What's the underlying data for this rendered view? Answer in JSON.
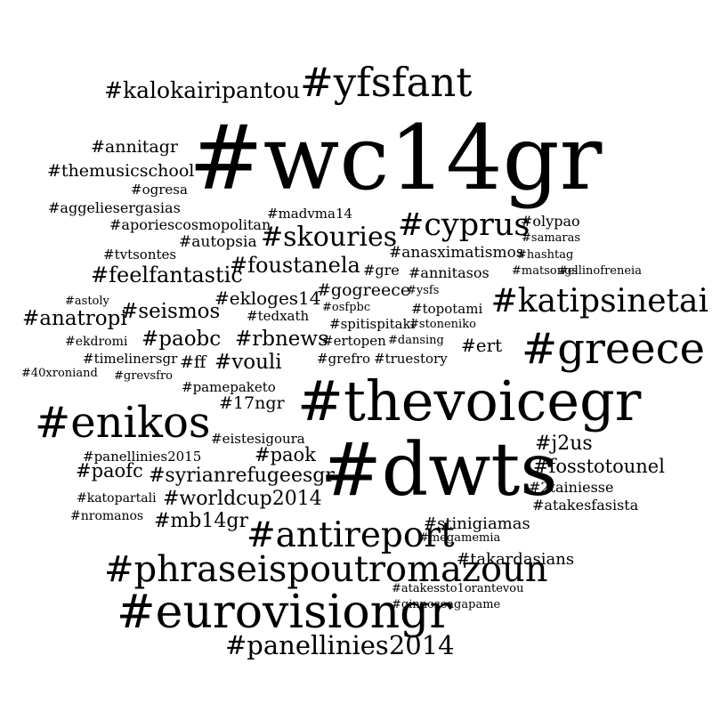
{
  "cloud": {
    "background": "#ffffff",
    "text_color": "#000000",
    "words": [
      {
        "text": "#wc14gr",
        "weight": 100
      },
      {
        "text": "#dwts",
        "weight": 82
      },
      {
        "text": "#thevoicegr",
        "weight": 62
      },
      {
        "text": "#eurovisiongr",
        "weight": 52
      },
      {
        "text": "#enikos",
        "weight": 48
      },
      {
        "text": "#greece",
        "weight": 48
      },
      {
        "text": "#yfsfant",
        "weight": 45
      },
      {
        "text": "#phraseispoutromazoun",
        "weight": 40
      },
      {
        "text": "#antireport",
        "weight": 39
      },
      {
        "text": "#katipsinetai",
        "weight": 36
      },
      {
        "text": "#cyprus",
        "weight": 35
      },
      {
        "text": "#skouries",
        "weight": 30
      },
      {
        "text": "#panellinies2014",
        "weight": 29
      },
      {
        "text": "#kalokairipantou",
        "weight": 25
      },
      {
        "text": "#feelfantastic",
        "weight": 24
      },
      {
        "text": "#foustanela",
        "weight": 24
      },
      {
        "text": "#anatropi",
        "weight": 23
      },
      {
        "text": "#seismos",
        "weight": 23
      },
      {
        "text": "#paobc",
        "weight": 23
      },
      {
        "text": "#rbnews",
        "weight": 23
      },
      {
        "text": "#vouli",
        "weight": 23
      },
      {
        "text": "#syrianrefugeesgr",
        "weight": 22
      },
      {
        "text": "#worldcup2014",
        "weight": 22
      },
      {
        "text": "#mb14gr",
        "weight": 22
      },
      {
        "text": "#paofc",
        "weight": 21
      },
      {
        "text": "#paok",
        "weight": 21
      },
      {
        "text": "#j2us",
        "weight": 22
      },
      {
        "text": "#fosstotounel",
        "weight": 21
      },
      {
        "text": "#ekloges14",
        "weight": 20
      },
      {
        "text": "#gogreece",
        "weight": 19
      },
      {
        "text": "#ert",
        "weight": 20
      },
      {
        "text": "#annitagr",
        "weight": 19
      },
      {
        "text": "#themusicschool",
        "weight": 19
      },
      {
        "text": "#17ngr",
        "weight": 19
      },
      {
        "text": "#ff",
        "weight": 19
      },
      {
        "text": "#stinigiamas",
        "weight": 18
      },
      {
        "text": "#takardasians",
        "weight": 18
      },
      {
        "text": "#autopsia",
        "weight": 17
      },
      {
        "text": "#anasximatismos",
        "weight": 17
      },
      {
        "text": "#annitasos",
        "weight": 16
      },
      {
        "text": "#gre",
        "weight": 16
      },
      {
        "text": "#olypao",
        "weight": 16
      },
      {
        "text": "#atakesfasista",
        "weight": 16
      },
      {
        "text": "#2tainiesse",
        "weight": 16
      },
      {
        "text": "#aggeliesergasias",
        "weight": 16
      },
      {
        "text": "#aporiescosmopolitan",
        "weight": 16
      },
      {
        "text": "#ogresa",
        "weight": 15
      },
      {
        "text": "#madvma14",
        "weight": 15
      },
      {
        "text": "#tvtsontes",
        "weight": 15
      },
      {
        "text": "#topotami",
        "weight": 15
      },
      {
        "text": "#spitispitaki",
        "weight": 15
      },
      {
        "text": "#tedxath",
        "weight": 15
      },
      {
        "text": "#timelinersgr",
        "weight": 15
      },
      {
        "text": "#ertopen",
        "weight": 15
      },
      {
        "text": "#grefro",
        "weight": 15
      },
      {
        "text": "#truestory",
        "weight": 15
      },
      {
        "text": "#eistesigoura",
        "weight": 15
      },
      {
        "text": "#panellinies2015",
        "weight": 15
      },
      {
        "text": "#pamepaketo",
        "weight": 15
      },
      {
        "text": "#ekdromi",
        "weight": 14
      },
      {
        "text": "#katopartali",
        "weight": 14
      },
      {
        "text": "#nromanos",
        "weight": 14
      },
      {
        "text": "#samaras",
        "weight": 13
      },
      {
        "text": "#hashtag",
        "weight": 13
      },
      {
        "text": "#matsongs",
        "weight": 13
      },
      {
        "text": "#ellinofreneia",
        "weight": 13
      },
      {
        "text": "#ysfs",
        "weight": 13
      },
      {
        "text": "#osfpbc",
        "weight": 13
      },
      {
        "text": "#stoneniko",
        "weight": 13
      },
      {
        "text": "#dansing",
        "weight": 13
      },
      {
        "text": "#astoly",
        "weight": 13
      },
      {
        "text": "#40xroniand",
        "weight": 13
      },
      {
        "text": "#grevsfro",
        "weight": 13
      },
      {
        "text": "#megamemia",
        "weight": 13
      },
      {
        "text": "#atakessto1orantevou",
        "weight": 13
      },
      {
        "text": "#ginnoseagapame",
        "weight": 13
      }
    ]
  }
}
